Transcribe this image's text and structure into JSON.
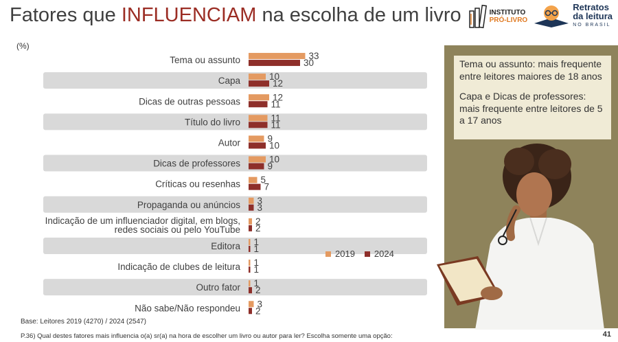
{
  "title": {
    "before": "Fatores que ",
    "highlight": "INFLUENCIAM",
    "after": " na escolha de um livro"
  },
  "logos": {
    "instituto": {
      "line1": "INSTITUTO",
      "line2": "PRÓ-LIVRO"
    },
    "retratos": {
      "line1": "Retratos",
      "line2": "da leitura",
      "line3": "NO BRASIL"
    }
  },
  "unit_label": "(%)",
  "chart_data": {
    "type": "bar",
    "orientation": "horizontal",
    "categories": [
      "Tema ou assunto",
      "Capa",
      "Dicas de outras pessoas",
      "Título do livro",
      "Autor",
      "Dicas de professores",
      "Críticas ou resenhas",
      "Propaganda ou anúncios",
      "Indicação de um influenciador digital, em blogs, redes sociais ou pelo YouTube",
      "Editora",
      "Indicação de clubes de leitura",
      "Outro fator",
      "Não sabe/Não respondeu"
    ],
    "series": [
      {
        "name": "2019",
        "color": "#e49a61",
        "values": [
          33,
          10,
          12,
          11,
          9,
          10,
          5,
          3,
          2,
          1,
          1,
          1,
          3
        ]
      },
      {
        "name": "2024",
        "color": "#8e2f2a",
        "values": [
          30,
          12,
          11,
          11,
          10,
          9,
          7,
          3,
          2,
          1,
          1,
          2,
          2
        ]
      }
    ],
    "legend_position": "bottom-right",
    "band_color": "#d9d9d9"
  },
  "note": {
    "p1": "Tema ou assunto: mais frequente entre leitores maiores de 18 anos",
    "p2": "Capa e Dicas de professores: mais frequente entre leitores de 5 a 17 anos"
  },
  "footer": {
    "base": "Base: Leitores 2019 (4270) / 2024 (2547)",
    "question": "P.36) Qual destes fatores mais influencia o(a) sr(a) na hora de escolher um livro ou autor para ler? Escolha somente uma opção:",
    "page": "41"
  }
}
